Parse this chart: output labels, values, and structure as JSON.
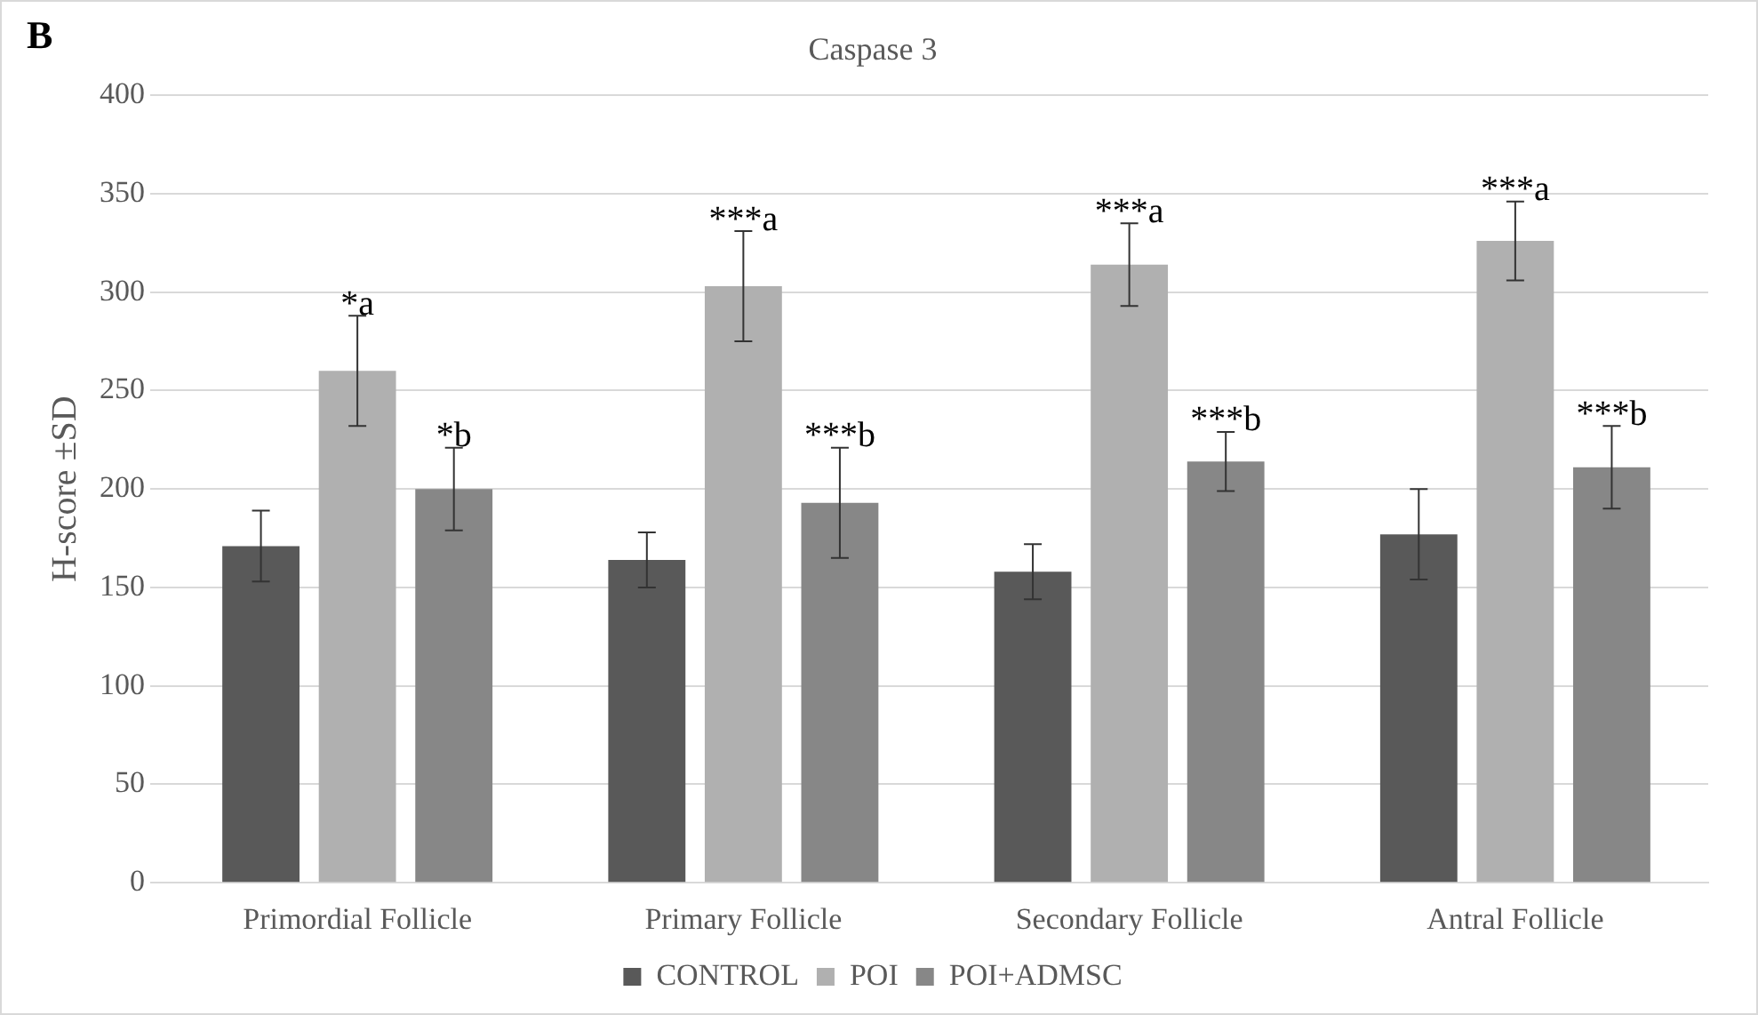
{
  "chart_data": {
    "type": "bar",
    "title": "Caspase 3",
    "ylabel": "H-score ±SD",
    "categories": [
      "Primordial Follicle",
      "Primary Follicle",
      "Secondary Follicle",
      "Antral Follicle"
    ],
    "series": [
      {
        "name": "CONTROL",
        "color": "#595959",
        "values": [
          171,
          164,
          158,
          177
        ],
        "errors": [
          18,
          14,
          14,
          23
        ]
      },
      {
        "name": "POI",
        "color": "#b0b0b0",
        "values": [
          260,
          303,
          314,
          326
        ],
        "errors": [
          28,
          28,
          21,
          20
        ],
        "value_labels": [
          "*a",
          "***a",
          "***a",
          "***a"
        ]
      },
      {
        "name": "POI+ADMSC",
        "color": "#878787",
        "values": [
          200,
          193,
          214,
          211
        ],
        "errors": [
          21,
          28,
          15,
          21
        ],
        "value_labels": [
          "*b",
          "***b",
          "***b",
          "***b"
        ]
      }
    ],
    "ylim": [
      0,
      400
    ],
    "yticks": [
      0,
      50,
      100,
      150,
      200,
      250,
      300,
      350,
      400
    ],
    "grid": "y",
    "legend": "bottom",
    "annotations": [
      "B"
    ]
  }
}
